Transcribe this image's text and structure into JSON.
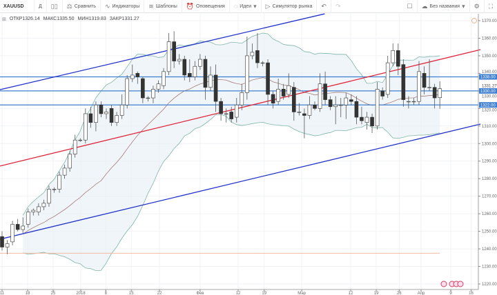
{
  "toolbar": {
    "symbol": "XAUUSD",
    "interval": "Д",
    "compare": "Сравнить",
    "indicators": "Индикаторы",
    "templates": "Шаблоны",
    "alerts": "Оповещения",
    "ideas": "Идеи",
    "replay": "Симулятор рынка",
    "layout_name": "Без названия",
    "icons": {
      "bar_style": "candles-icon",
      "compare": "compare-icon",
      "indicators": "indicators-icon",
      "templates": "templates-icon",
      "alerts": "alarm-clock-icon",
      "ideas": "lightbulb-icon",
      "replay": "play-icon",
      "undo": "undo-icon",
      "redo": "redo-icon",
      "single_layout": "square-icon",
      "cloud": "cloud-icon",
      "settings": "gear-icon",
      "fullscreen": "fullscreen-icon"
    }
  },
  "legend": {
    "open_label": "ОТКР",
    "open": "1326.14",
    "high_label": "МАКС",
    "high": "1335.50",
    "low_label": "МИН",
    "low": "1319.83",
    "close_label": "ЗАКР",
    "close": "1331.27"
  },
  "chart_data": {
    "type": "candlestick",
    "ylim": [
      1220,
      1370
    ],
    "yticks": [
      "1370.00",
      "1360.00",
      "1350.00",
      "1340.00",
      "1330.00",
      "1320.00",
      "1310.00",
      "1300.00",
      "1290.00",
      "1280.00",
      "1270.00",
      "1260.00",
      "1250.00",
      "1240.00",
      "1230.00",
      "1220.00"
    ],
    "xticks": [
      {
        "label": "11",
        "bar": 0
      },
      {
        "label": "18",
        "bar": 4.9
      },
      {
        "label": "25",
        "bar": 9.8
      },
      {
        "label": "2018",
        "bar": 15.1
      },
      {
        "label": "8",
        "bar": 19.9
      },
      {
        "label": "15",
        "bar": 24.8
      },
      {
        "label": "22",
        "bar": 30.2
      },
      {
        "label": "Фев",
        "bar": 38
      },
      {
        "label": "12",
        "bar": 45.3
      },
      {
        "label": "19",
        "bar": 50.3
      },
      {
        "label": "Мар",
        "bar": 57.5
      },
      {
        "label": "12",
        "bar": 66.9
      },
      {
        "label": "19",
        "bar": 71.8
      },
      {
        "label": "26",
        "bar": 76.2
      },
      {
        "label": "Апр",
        "bar": 80.4
      },
      {
        "label": "9",
        "bar": 86.1
      },
      {
        "label": "16",
        "bar": 90
      }
    ],
    "ohlc": [
      [
        1247,
        1250,
        1239,
        1241
      ],
      [
        1241,
        1245,
        1237,
        1243
      ],
      [
        1244,
        1256,
        1242,
        1254
      ],
      [
        1254,
        1257,
        1250,
        1251
      ],
      [
        1251,
        1258,
        1249,
        1253
      ],
      [
        1254,
        1263,
        1252,
        1261
      ],
      [
        1261,
        1263,
        1259,
        1262
      ],
      [
        1261,
        1266,
        1259,
        1264
      ],
      [
        1264,
        1268,
        1262,
        1266
      ],
      [
        1266,
        1276,
        1264,
        1274
      ],
      [
        1274,
        1275,
        1272,
        1274
      ],
      [
        1274,
        1284,
        1272,
        1282
      ],
      [
        1282,
        1288,
        1280,
        1286
      ],
      [
        1286,
        1296,
        1284,
        1294
      ],
      [
        1294,
        1305,
        1292,
        1302
      ],
      [
        1302,
        1303,
        1301,
        1302
      ],
      [
        1302,
        1320,
        1300,
        1317
      ],
      [
        1317,
        1321,
        1309,
        1312
      ],
      [
        1312,
        1324,
        1307,
        1322
      ],
      [
        1322,
        1324,
        1315,
        1317
      ],
      [
        1317,
        1320,
        1314,
        1318
      ],
      [
        1320,
        1322,
        1310,
        1312
      ],
      [
        1312,
        1318,
        1310,
        1316
      ],
      [
        1316,
        1328,
        1314,
        1322
      ],
      [
        1322,
        1339,
        1320,
        1337
      ],
      [
        1337,
        1345,
        1335,
        1339
      ],
      [
        1340,
        1341,
        1334,
        1338
      ],
      [
        1337,
        1338,
        1323,
        1326
      ],
      [
        1326,
        1327,
        1324,
        1326
      ],
      [
        1326,
        1333,
        1323,
        1331
      ],
      [
        1331,
        1336,
        1329,
        1334
      ],
      [
        1333,
        1343,
        1331,
        1341
      ],
      [
        1341,
        1363,
        1339,
        1358
      ],
      [
        1358,
        1364,
        1343,
        1347
      ],
      [
        1347,
        1351,
        1345,
        1348
      ],
      [
        1348,
        1350,
        1336,
        1339
      ],
      [
        1340,
        1348,
        1335,
        1338
      ],
      [
        1338,
        1347,
        1336,
        1344
      ],
      [
        1344,
        1351,
        1342,
        1348
      ],
      [
        1348,
        1350,
        1325,
        1332
      ],
      [
        1332,
        1344,
        1330,
        1339
      ],
      [
        1339,
        1345,
        1318,
        1324
      ],
      [
        1324,
        1326,
        1313,
        1317
      ],
      [
        1317,
        1320,
        1312,
        1317
      ],
      [
        1318,
        1321,
        1312,
        1314
      ],
      [
        1315,
        1326,
        1312,
        1322
      ],
      [
        1322,
        1334,
        1319,
        1329
      ],
      [
        1329,
        1361,
        1325,
        1350
      ],
      [
        1350,
        1357,
        1348,
        1352
      ],
      [
        1353,
        1363,
        1343,
        1346
      ],
      [
        1346,
        1347,
        1344,
        1346
      ],
      [
        1346,
        1348,
        1322,
        1328
      ],
      [
        1328,
        1330,
        1320,
        1323
      ],
      [
        1324,
        1337,
        1322,
        1331
      ],
      [
        1331,
        1334,
        1325,
        1327
      ],
      [
        1328,
        1340,
        1326,
        1333
      ],
      [
        1332,
        1335,
        1313,
        1318
      ],
      [
        1318,
        1323,
        1316,
        1318
      ],
      [
        1317,
        1320,
        1303,
        1316
      ],
      [
        1316,
        1327,
        1314,
        1322
      ],
      [
        1322,
        1324,
        1319,
        1320
      ],
      [
        1320,
        1340,
        1318,
        1334
      ],
      [
        1334,
        1341,
        1322,
        1325
      ],
      [
        1325,
        1327,
        1319,
        1321
      ],
      [
        1321,
        1327,
        1311,
        1322
      ],
      [
        1322,
        1326,
        1315,
        1322
      ],
      [
        1322,
        1329,
        1314,
        1326
      ],
      [
        1325,
        1328,
        1322,
        1324
      ],
      [
        1324,
        1327,
        1311,
        1315
      ],
      [
        1315,
        1321,
        1311,
        1313
      ],
      [
        1312,
        1318,
        1308,
        1315
      ],
      [
        1315,
        1317,
        1306,
        1310
      ],
      [
        1310,
        1335,
        1308,
        1331
      ],
      [
        1330,
        1332,
        1325,
        1327
      ],
      [
        1328,
        1350,
        1326,
        1346
      ],
      [
        1346,
        1357,
        1344,
        1353
      ],
      [
        1353,
        1357,
        1339,
        1344
      ],
      [
        1345,
        1348,
        1321,
        1325
      ],
      [
        1324,
        1327,
        1320,
        1324
      ],
      [
        1324,
        1326,
        1322,
        1324
      ],
      [
        1324,
        1347,
        1322,
        1341
      ],
      [
        1340,
        1344,
        1328,
        1332
      ],
      [
        1332,
        1348,
        1330,
        1332
      ],
      [
        1332,
        1334,
        1320,
        1326
      ],
      [
        1326.14,
        1335.5,
        1319.83,
        1331.27
      ]
    ],
    "bollinger": {
      "period": 20,
      "stddev": 2
    },
    "trendlines": [
      {
        "color": "#2233cc",
        "from": {
          "bar": -0.4,
          "price": 1330.7
        },
        "to": {
          "bar": 61.9,
          "price": 1373.9
        }
      },
      {
        "color": "#2233cc",
        "from": {
          "bar": -0.4,
          "price": 1245.5
        },
        "to": {
          "bar": 91.8,
          "price": 1311.1
        }
      },
      {
        "color": "#e0243a",
        "from": {
          "bar": -0.4,
          "price": 1287.2
        },
        "to": {
          "bar": 91.8,
          "price": 1353.5
        }
      }
    ],
    "hlines": [
      {
        "price": 1338,
        "label": "1338.00",
        "color": "#3f7fcf"
      },
      {
        "price": 1330,
        "label": "1330.00",
        "color": "#3f7fcf"
      },
      {
        "price": 1322,
        "label": "1322.00",
        "color": "#3f7fcf"
      }
    ],
    "support_line": {
      "price": 1237.5,
      "color": "#f4b8a0"
    },
    "last_price": {
      "price": 1331.27,
      "label": "1331.27"
    },
    "colors": {
      "up": "#ffffff",
      "down": "#333333",
      "wick": "#555555",
      "band_fill": "#e8f1f5",
      "band_line": "#7fb5a8",
      "basis": "#a06a6a"
    }
  }
}
